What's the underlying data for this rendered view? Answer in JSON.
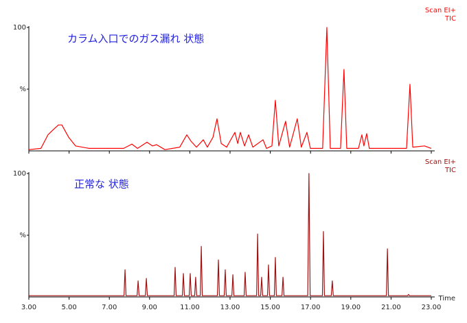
{
  "chart_data": [
    {
      "type": "line",
      "title": "カラム入口でのガス漏れ 状態",
      "annotations": [
        "Scan EI+",
        "TIC"
      ],
      "color": "#ff0000",
      "xlim": [
        3,
        23
      ],
      "ylim": [
        0,
        100
      ],
      "yticks": [
        100,
        {
          "value": 50,
          "label": "%"
        }
      ],
      "x": [
        3.0,
        3.6,
        3.95,
        4.2,
        4.47,
        4.64,
        4.98,
        5.32,
        6.0,
        7.71,
        8.12,
        8.4,
        8.87,
        9.14,
        9.35,
        9.76,
        10.5,
        10.85,
        11.05,
        11.33,
        11.67,
        11.87,
        12.15,
        12.35,
        12.56,
        12.83,
        13.24,
        13.38,
        13.51,
        13.72,
        13.92,
        14.13,
        14.64,
        14.81,
        15.08,
        15.25,
        15.42,
        15.76,
        15.96,
        16.34,
        16.54,
        16.82,
        16.99,
        17.6,
        17.81,
        17.98,
        18.49,
        18.66,
        18.8,
        19.38,
        19.55,
        19.65,
        19.79,
        19.92,
        21.77,
        21.94,
        22.08,
        22.66,
        23.0
      ],
      "values": [
        1,
        2,
        13,
        17,
        21,
        21,
        11,
        4,
        2,
        2,
        5.5,
        2,
        7,
        4,
        5,
        1,
        3,
        13,
        8,
        3,
        9,
        3,
        11,
        26,
        6,
        3,
        15,
        6,
        15,
        4,
        13,
        3,
        9,
        2,
        4,
        41,
        4,
        24,
        3,
        26,
        3,
        15,
        2,
        2,
        100,
        2,
        2,
        66,
        2,
        2,
        13,
        4,
        14,
        2,
        2,
        54,
        3,
        4,
        2
      ]
    },
    {
      "type": "line",
      "title": "正常な 状態",
      "annotations": [
        "Scan EI+",
        "TIC"
      ],
      "color": "#a01010",
      "x_label": "Time",
      "xlim": [
        3,
        23
      ],
      "ylim": [
        0,
        100
      ],
      "yticks": [
        100,
        {
          "value": 50,
          "label": "%"
        }
      ],
      "xticks": [
        {
          "value": 3,
          "label": "3.00"
        },
        {
          "value": 5,
          "label": "5.00"
        },
        {
          "value": 7,
          "label": "7.00"
        },
        {
          "value": 9,
          "label": "9.00"
        },
        {
          "value": 11,
          "label": "11.00"
        },
        {
          "value": 13,
          "label": "13.00"
        },
        {
          "value": 15,
          "label": "15.00"
        },
        {
          "value": 17,
          "label": "17.00"
        },
        {
          "value": 19,
          "label": "19.00"
        },
        {
          "value": 21,
          "label": "21.00"
        },
        {
          "value": 23,
          "label": "23.00"
        }
      ],
      "x": [
        3.0,
        7.73,
        7.78,
        7.83,
        8.38,
        8.43,
        8.48,
        8.79,
        8.84,
        8.89,
        10.22,
        10.27,
        10.32,
        10.63,
        10.68,
        10.73,
        10.97,
        11.02,
        11.07,
        11.24,
        11.29,
        11.34,
        11.52,
        11.57,
        11.62,
        12.37,
        12.42,
        12.47,
        12.71,
        12.76,
        12.81,
        13.09,
        13.14,
        13.19,
        13.7,
        13.75,
        13.8,
        14.32,
        14.37,
        14.42,
        14.52,
        14.57,
        14.62,
        14.86,
        14.91,
        14.96,
        15.2,
        15.25,
        15.3,
        15.58,
        15.63,
        15.68,
        16.86,
        16.92,
        16.98,
        17.59,
        17.64,
        17.69,
        18.03,
        18.08,
        18.13,
        20.77,
        20.82,
        20.87,
        21.82,
        21.87,
        21.92,
        23.0
      ],
      "values": [
        1,
        1,
        22,
        1,
        1,
        13,
        1,
        1,
        15,
        1,
        1,
        24,
        1,
        1,
        19,
        1,
        1,
        19,
        1,
        1,
        16,
        1,
        1,
        41,
        1,
        1,
        30,
        1,
        1,
        22,
        1,
        1,
        18,
        1,
        1,
        20,
        1,
        1,
        51,
        1,
        1,
        16,
        1,
        1,
        26,
        1,
        1,
        32,
        1,
        1,
        16,
        1,
        1,
        100,
        1,
        1,
        53,
        1,
        1,
        13,
        1,
        1,
        39,
        1,
        1,
        2,
        1,
        1
      ]
    }
  ]
}
